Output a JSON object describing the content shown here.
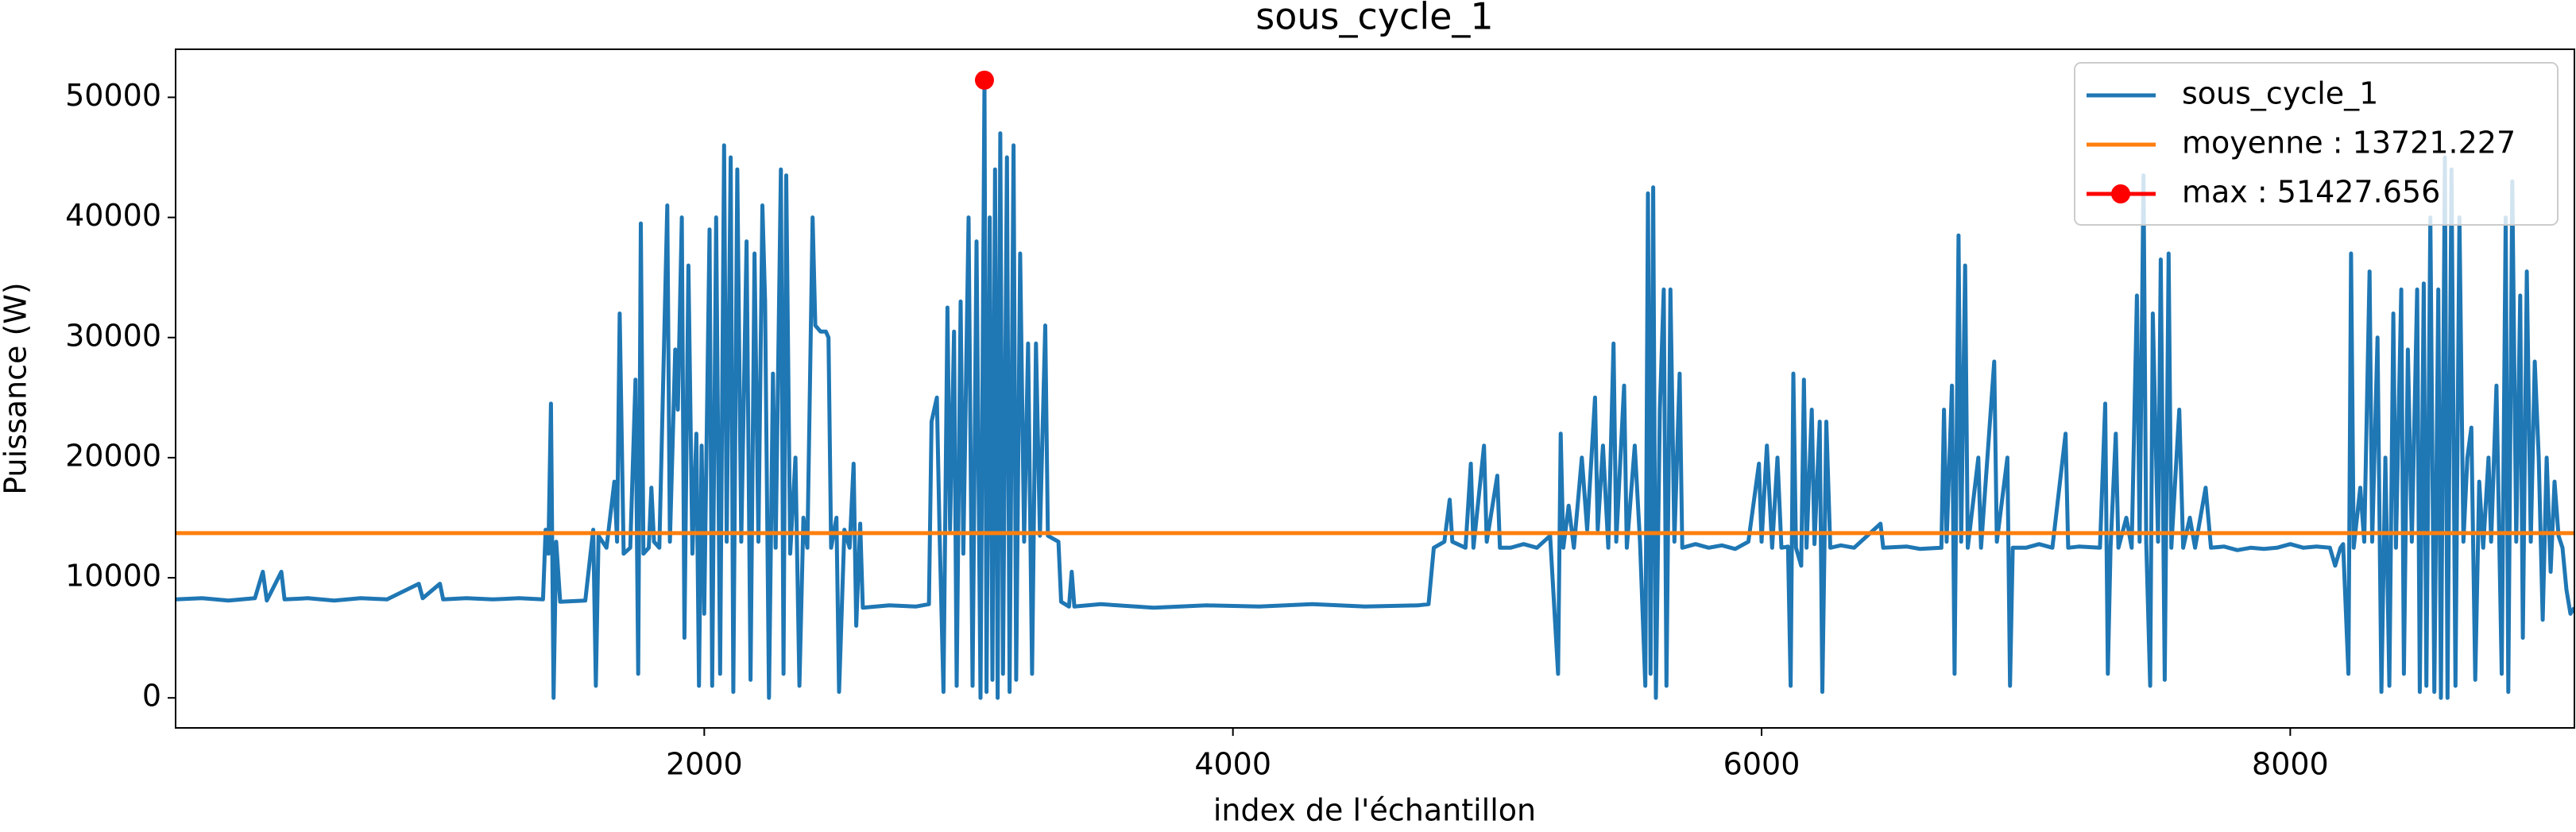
{
  "chart_data": {
    "type": "line",
    "title": "sous_cycle_1",
    "x_label": "index de l'échantillon",
    "y_label": "Puissance (W)",
    "xlim": [
      0,
      9075
    ],
    "ylim": [
      -2500,
      54000
    ],
    "xticks": [
      2000,
      4000,
      6000,
      8000
    ],
    "yticks": [
      0,
      10000,
      20000,
      30000,
      40000,
      50000
    ],
    "grid": false,
    "legend": "upper right",
    "series": [
      {
        "name": "sous_cycle_1",
        "color": "#1f77b4",
        "style": "line",
        "x": [
          0,
          100,
          200,
          300,
          330,
          345,
          400,
          412,
          500,
          600,
          700,
          800,
          920,
          935,
          1000,
          1012,
          1100,
          1200,
          1300,
          1390,
          1400,
          1410,
          1420,
          1430,
          1440,
          1455,
          1550,
          1580,
          1590,
          1600,
          1630,
          1660,
          1670,
          1680,
          1695,
          1720,
          1740,
          1750,
          1760,
          1770,
          1790,
          1800,
          1810,
          1830,
          1860,
          1870,
          1890,
          1900,
          1915,
          1925,
          1940,
          1955,
          1970,
          1980,
          1990,
          2000,
          2020,
          2030,
          2045,
          2060,
          2075,
          2085,
          2100,
          2110,
          2125,
          2140,
          2160,
          2175,
          2190,
          2205,
          2220,
          2230,
          2245,
          2260,
          2270,
          2290,
          2300,
          2310,
          2325,
          2345,
          2360,
          2375,
          2390,
          2410,
          2420,
          2440,
          2460,
          2470,
          2480,
          2500,
          2510,
          2530,
          2550,
          2565,
          2575,
          2590,
          2600,
          2700,
          2800,
          2850,
          2860,
          2880,
          2890,
          2905,
          2920,
          2930,
          2945,
          2955,
          2970,
          2980,
          3000,
          3015,
          3030,
          3045,
          3060,
          3068,
          3080,
          3090,
          3100,
          3110,
          3120,
          3130,
          3145,
          3155,
          3170,
          3180,
          3195,
          3210,
          3225,
          3240,
          3255,
          3270,
          3290,
          3300,
          3340,
          3350,
          3380,
          3390,
          3400,
          3500,
          3700,
          3900,
          4100,
          4300,
          4500,
          4700,
          4740,
          4760,
          4800,
          4820,
          4830,
          4880,
          4900,
          4910,
          4950,
          4960,
          5000,
          5010,
          5050,
          5100,
          5150,
          5200,
          5230,
          5240,
          5250,
          5270,
          5290,
          5320,
          5340,
          5370,
          5380,
          5400,
          5420,
          5440,
          5450,
          5480,
          5490,
          5520,
          5540,
          5560,
          5570,
          5580,
          5590,
          5600,
          5615,
          5630,
          5640,
          5655,
          5670,
          5690,
          5700,
          5750,
          5800,
          5850,
          5900,
          5950,
          5990,
          6000,
          6020,
          6040,
          6060,
          6075,
          6100,
          6110,
          6120,
          6130,
          6150,
          6160,
          6170,
          6190,
          6200,
          6220,
          6230,
          6245,
          6260,
          6300,
          6350,
          6450,
          6460,
          6550,
          6600,
          6680,
          6690,
          6700,
          6720,
          6730,
          6745,
          6755,
          6770,
          6780,
          6820,
          6830,
          6880,
          6890,
          6930,
          6940,
          6950,
          7000,
          7050,
          7100,
          7150,
          7160,
          7200,
          7280,
          7300,
          7310,
          7320,
          7340,
          7350,
          7380,
          7400,
          7420,
          7430,
          7445,
          7455,
          7470,
          7480,
          7500,
          7510,
          7525,
          7540,
          7550,
          7580,
          7595,
          7620,
          7640,
          7680,
          7700,
          7750,
          7800,
          7850,
          7900,
          7950,
          8000,
          8050,
          8100,
          8150,
          8170,
          8190,
          8200,
          8220,
          8230,
          8240,
          8265,
          8280,
          8300,
          8310,
          8330,
          8345,
          8360,
          8375,
          8390,
          8400,
          8420,
          8430,
          8445,
          8460,
          8480,
          8490,
          8505,
          8515,
          8530,
          8545,
          8560,
          8570,
          8585,
          8595,
          8610,
          8625,
          8640,
          8655,
          8670,
          8685,
          8700,
          8715,
          8730,
          8750,
          8760,
          8780,
          8800,
          8815,
          8825,
          8840,
          8855,
          8870,
          8880,
          8895,
          8910,
          8925,
          8940,
          8955,
          8970,
          8985,
          9000,
          9015,
          9030,
          9045,
          9060,
          9075
        ],
        "values": [
          8200,
          8300,
          8100,
          8300,
          10500,
          8100,
          10500,
          8200,
          8300,
          8100,
          8300,
          8200,
          9500,
          8300,
          9500,
          8200,
          8300,
          8200,
          8300,
          8200,
          14000,
          12000,
          24500,
          0,
          13000,
          8000,
          8100,
          14000,
          1000,
          13500,
          12500,
          18000,
          13000,
          32000,
          12000,
          12500,
          26500,
          2000,
          39500,
          12000,
          12500,
          17500,
          13000,
          12500,
          41000,
          13000,
          29000,
          24000,
          40000,
          5000,
          36000,
          12000,
          22000,
          1000,
          21000,
          7000,
          39000,
          1000,
          40000,
          2000,
          46000,
          13000,
          45000,
          500,
          44000,
          13000,
          38000,
          1500,
          37000,
          13000,
          41000,
          33000,
          0,
          27000,
          12500,
          44000,
          2000,
          43500,
          12000,
          20000,
          1000,
          15000,
          12500,
          40000,
          31000,
          30500,
          30500,
          30000,
          12500,
          15000,
          500,
          14000,
          12500,
          19500,
          6000,
          14500,
          7500,
          7700,
          7600,
          7800,
          23000,
          25000,
          14000,
          500,
          32500,
          14000,
          30500,
          1000,
          33000,
          12000,
          40000,
          1000,
          38000,
          0,
          51427.656,
          500,
          40000,
          1500,
          44000,
          0,
          47000,
          2000,
          45000,
          500,
          46000,
          1500,
          37000,
          13000,
          29500,
          2000,
          29500,
          13500,
          31000,
          13500,
          13000,
          8000,
          7600,
          10500,
          7600,
          7800,
          7500,
          7700,
          7600,
          7800,
          7600,
          7700,
          7800,
          12500,
          13000,
          16500,
          13000,
          12500,
          19500,
          12500,
          21000,
          13000,
          18500,
          12500,
          12500,
          12800,
          12500,
          13500,
          2000,
          22000,
          12500,
          16000,
          12500,
          20000,
          14000,
          25000,
          14000,
          21000,
          12500,
          29500,
          13000,
          26000,
          12500,
          21000,
          13000,
          1000,
          42000,
          2000,
          42500,
          0,
          24000,
          34000,
          1000,
          34000,
          13000,
          27000,
          12500,
          12800,
          12500,
          12700,
          12400,
          13000,
          19500,
          13000,
          21000,
          12500,
          20000,
          12500,
          12600,
          1000,
          27000,
          12500,
          11000,
          26500,
          12500,
          24000,
          12800,
          23000,
          500,
          23000,
          12500,
          12700,
          12500,
          14500,
          12500,
          12600,
          12400,
          12500,
          24000,
          13000,
          26000,
          2000,
          38500,
          13000,
          36000,
          12500,
          20000,
          12500,
          28000,
          13000,
          20000,
          1000,
          12500,
          12500,
          12800,
          12500,
          22000,
          12500,
          12600,
          12500,
          24500,
          2000,
          12500,
          22000,
          12500,
          15000,
          12500,
          33500,
          13000,
          43500,
          13000,
          1000,
          32000,
          13000,
          36500,
          1500,
          37000,
          12500,
          24000,
          12500,
          15000,
          12500,
          17500,
          12500,
          12600,
          12300,
          12500,
          12400,
          12500,
          12800,
          12500,
          12600,
          12500,
          11000,
          12500,
          12800,
          2000,
          37000,
          12500,
          17500,
          13000,
          35500,
          13000,
          30000,
          500,
          20000,
          1000,
          32000,
          12500,
          34000,
          2000,
          29000,
          13000,
          34000,
          500,
          34500,
          1000,
          40000,
          500,
          34000,
          0,
          45000,
          0,
          44000,
          1000,
          40000,
          13000,
          20000,
          22500,
          1500,
          18000,
          12500,
          20000,
          13000,
          26000,
          2000,
          40000,
          500,
          43000,
          13000,
          33500,
          5000,
          35500,
          13000,
          28000,
          20000,
          6500,
          20000,
          10500,
          18000,
          13500,
          12500,
          9000,
          7000,
          7500
        ]
      },
      {
        "name": "moyenne : 13721.227",
        "color": "#ff7f0e",
        "style": "hline",
        "values": [
          13721.227
        ]
      },
      {
        "name": "max : 51427.656",
        "color": "#ff0000",
        "style": "marker",
        "x": [
          3060
        ],
        "values": [
          51427.656
        ]
      }
    ]
  }
}
